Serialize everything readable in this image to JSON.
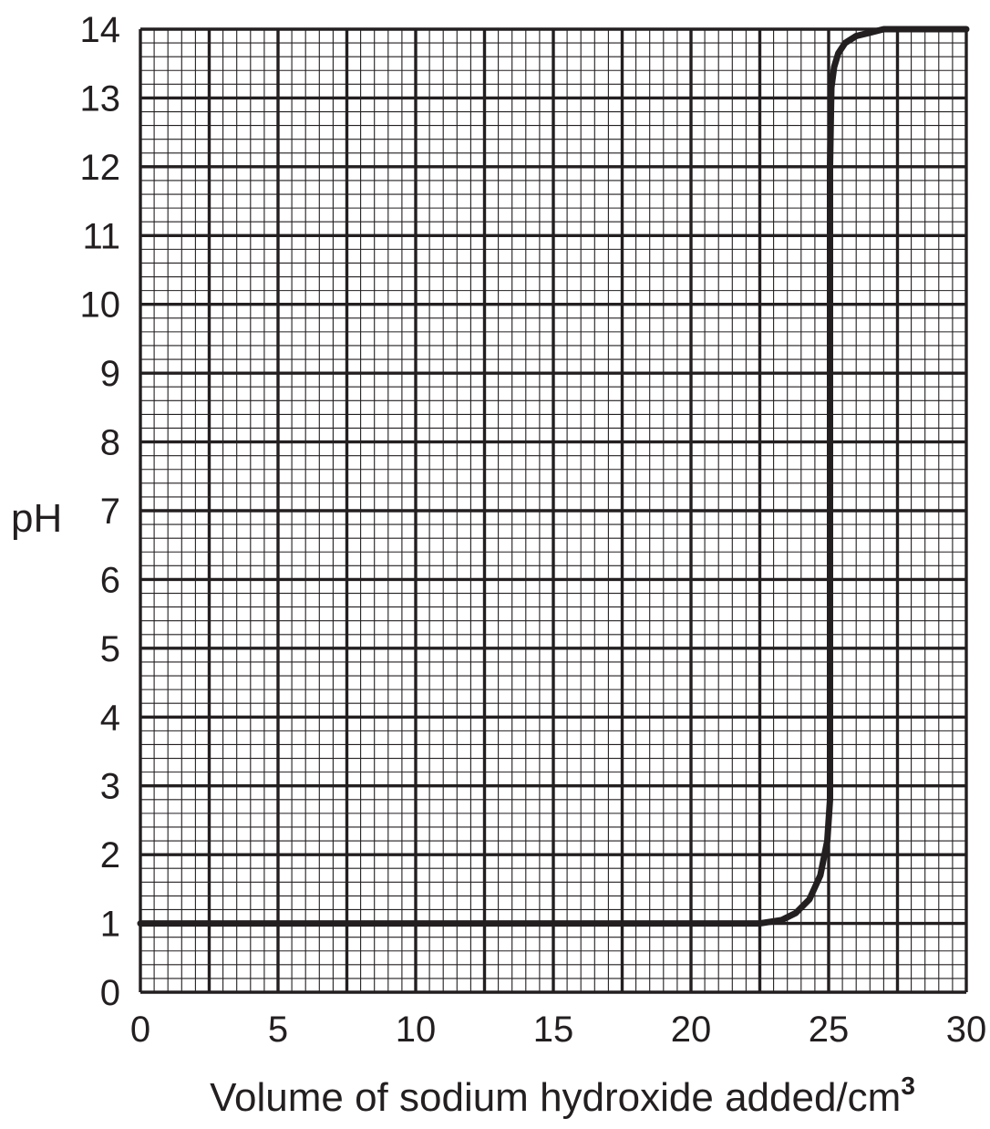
{
  "chart_data": {
    "type": "line",
    "title": "",
    "xlabel": "Volume of sodium hydroxide added/cm",
    "xlabel_superscript": "3",
    "ylabel": "pH",
    "xlim": [
      0,
      30
    ],
    "ylim": [
      0,
      14
    ],
    "x_ticks": [
      "0",
      "5",
      "10",
      "15",
      "20",
      "25",
      "30"
    ],
    "y_ticks": [
      "0",
      "1",
      "2",
      "3",
      "4",
      "5",
      "6",
      "7",
      "8",
      "9",
      "10",
      "11",
      "12",
      "13",
      "14"
    ],
    "grid": true,
    "grid_style": "graph paper",
    "legend": "none",
    "series": [
      {
        "x": [
          0,
          5,
          10,
          15,
          20,
          22.5,
          23.3,
          23.8,
          24.3,
          24.7,
          24.95,
          25.05,
          25.05,
          25.1,
          25.2,
          25.35,
          25.6,
          26.0,
          26.5,
          27.0,
          27.5,
          30
        ],
        "y": [
          1.0,
          1.0,
          1.0,
          1.0,
          1.0,
          1.0,
          1.05,
          1.15,
          1.35,
          1.7,
          2.2,
          2.8,
          12.0,
          13.15,
          13.45,
          13.65,
          13.8,
          13.9,
          13.95,
          14.0,
          14.0,
          14.0
        ]
      }
    ],
    "colors": {
      "line": "#231f20",
      "grid": "#231f20",
      "text": "#231f20"
    }
  }
}
